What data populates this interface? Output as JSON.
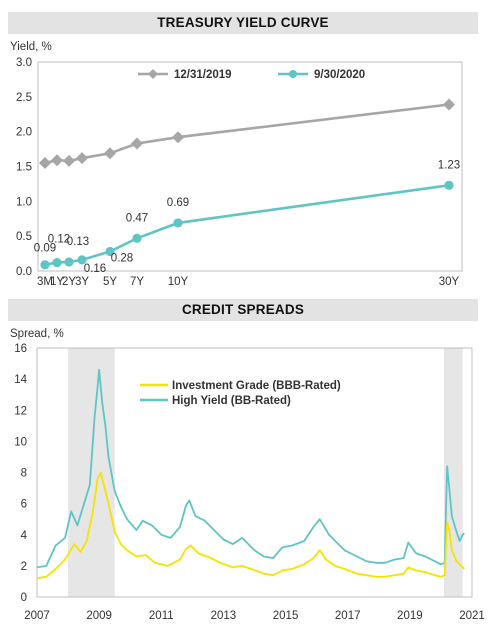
{
  "panels": {
    "yield_title": "TREASURY YIELD CURVE",
    "spread_title": "CREDIT SPREADS"
  },
  "colors": {
    "gray_series": "#a6a6a6",
    "teal_series": "#5fc4c4",
    "yellow_series": "#f5e300",
    "recession_shade": "#e6e6e6",
    "title_bar": "#e3e3e3"
  },
  "chart_data": [
    {
      "type": "line",
      "title": "TREASURY YIELD CURVE",
      "ylabel": "Yield, %",
      "ylim": [
        0,
        3.0
      ],
      "yticks": [
        "0.0",
        "0.5",
        "1.0",
        "1.5",
        "2.0",
        "2.5",
        "3.0"
      ],
      "grid": false,
      "legend": "top",
      "x_tick_labels": [
        "3M",
        "1Y",
        "2Y",
        "3Y",
        "5Y",
        "7Y",
        "10Y",
        "30Y"
      ],
      "x_years": [
        0.25,
        1,
        2,
        3,
        5,
        7,
        10,
        30
      ],
      "series": [
        {
          "name": "12/31/2019",
          "marker": "diamond",
          "values": [
            1.55,
            1.59,
            1.58,
            1.62,
            1.69,
            1.83,
            1.92,
            2.39
          ]
        },
        {
          "name": "9/30/2020",
          "marker": "circle",
          "values": [
            0.09,
            0.12,
            0.13,
            0.16,
            0.28,
            0.47,
            0.69,
            1.23
          ],
          "data_labels": [
            "0.09",
            "0.12",
            "0.13",
            "0.16",
            "0.28",
            "0.47",
            "0.69",
            "1.23"
          ]
        }
      ]
    },
    {
      "type": "line",
      "title": "CREDIT SPREADS",
      "ylabel": "Spread, %",
      "ylim": [
        0,
        16
      ],
      "yticks": [
        "0",
        "2",
        "4",
        "6",
        "8",
        "10",
        "12",
        "14",
        "16"
      ],
      "xlim": [
        2007,
        2021
      ],
      "xticks": [
        "2007",
        "2009",
        "2011",
        "2013",
        "2015",
        "2017",
        "2019",
        "2021"
      ],
      "grid": false,
      "legend": "top-center",
      "shaded_periods": [
        [
          2008.0,
          2009.5
        ],
        [
          2020.1,
          2020.7
        ]
      ],
      "series": [
        {
          "name": "Investment Grade (BBB-Rated)",
          "points": [
            [
              2007.0,
              1.2
            ],
            [
              2007.3,
              1.3
            ],
            [
              2007.6,
              1.8
            ],
            [
              2007.9,
              2.4
            ],
            [
              2008.2,
              3.4
            ],
            [
              2008.4,
              2.9
            ],
            [
              2008.6,
              3.6
            ],
            [
              2008.8,
              5.5
            ],
            [
              2008.95,
              7.6
            ],
            [
              2009.05,
              8.0
            ],
            [
              2009.15,
              7.2
            ],
            [
              2009.3,
              6.0
            ],
            [
              2009.5,
              4.2
            ],
            [
              2009.7,
              3.4
            ],
            [
              2009.9,
              3.0
            ],
            [
              2010.2,
              2.6
            ],
            [
              2010.5,
              2.7
            ],
            [
              2010.8,
              2.2
            ],
            [
              2011.2,
              2.0
            ],
            [
              2011.6,
              2.4
            ],
            [
              2011.8,
              3.1
            ],
            [
              2011.95,
              3.3
            ],
            [
              2012.2,
              2.8
            ],
            [
              2012.6,
              2.5
            ],
            [
              2012.9,
              2.2
            ],
            [
              2013.3,
              1.9
            ],
            [
              2013.6,
              2.0
            ],
            [
              2013.9,
              1.8
            ],
            [
              2014.3,
              1.5
            ],
            [
              2014.6,
              1.4
            ],
            [
              2014.9,
              1.7
            ],
            [
              2015.2,
              1.8
            ],
            [
              2015.6,
              2.1
            ],
            [
              2015.9,
              2.5
            ],
            [
              2016.1,
              3.0
            ],
            [
              2016.3,
              2.4
            ],
            [
              2016.6,
              2.0
            ],
            [
              2016.9,
              1.8
            ],
            [
              2017.3,
              1.5
            ],
            [
              2017.6,
              1.4
            ],
            [
              2017.9,
              1.3
            ],
            [
              2018.2,
              1.3
            ],
            [
              2018.5,
              1.4
            ],
            [
              2018.8,
              1.5
            ],
            [
              2018.95,
              1.9
            ],
            [
              2019.2,
              1.7
            ],
            [
              2019.5,
              1.6
            ],
            [
              2019.8,
              1.4
            ],
            [
              2020.0,
              1.3
            ],
            [
              2020.12,
              1.4
            ],
            [
              2020.2,
              4.8
            ],
            [
              2020.27,
              4.3
            ],
            [
              2020.35,
              3.0
            ],
            [
              2020.5,
              2.3
            ],
            [
              2020.7,
              1.9
            ],
            [
              2020.75,
              1.8
            ]
          ]
        },
        {
          "name": "High Yield (BB-Rated)",
          "points": [
            [
              2007.0,
              1.9
            ],
            [
              2007.3,
              2.0
            ],
            [
              2007.6,
              3.3
            ],
            [
              2007.9,
              3.8
            ],
            [
              2008.1,
              5.5
            ],
            [
              2008.3,
              4.6
            ],
            [
              2008.5,
              5.9
            ],
            [
              2008.7,
              7.2
            ],
            [
              2008.85,
              11.5
            ],
            [
              2008.95,
              13.5
            ],
            [
              2009.0,
              14.6
            ],
            [
              2009.1,
              12.5
            ],
            [
              2009.2,
              11.0
            ],
            [
              2009.3,
              9.0
            ],
            [
              2009.5,
              6.8
            ],
            [
              2009.7,
              5.8
            ],
            [
              2009.9,
              5.0
            ],
            [
              2010.2,
              4.3
            ],
            [
              2010.4,
              4.9
            ],
            [
              2010.7,
              4.6
            ],
            [
              2011.0,
              4.0
            ],
            [
              2011.3,
              3.8
            ],
            [
              2011.6,
              4.5
            ],
            [
              2011.8,
              5.9
            ],
            [
              2011.9,
              6.2
            ],
            [
              2012.1,
              5.2
            ],
            [
              2012.4,
              4.9
            ],
            [
              2012.7,
              4.3
            ],
            [
              2013.0,
              3.7
            ],
            [
              2013.3,
              3.4
            ],
            [
              2013.6,
              3.8
            ],
            [
              2014.0,
              3.0
            ],
            [
              2014.3,
              2.6
            ],
            [
              2014.6,
              2.5
            ],
            [
              2014.9,
              3.2
            ],
            [
              2015.2,
              3.3
            ],
            [
              2015.6,
              3.6
            ],
            [
              2015.9,
              4.5
            ],
            [
              2016.1,
              5.0
            ],
            [
              2016.4,
              4.0
            ],
            [
              2016.7,
              3.4
            ],
            [
              2016.9,
              3.0
            ],
            [
              2017.3,
              2.6
            ],
            [
              2017.6,
              2.3
            ],
            [
              2017.9,
              2.2
            ],
            [
              2018.2,
              2.2
            ],
            [
              2018.5,
              2.4
            ],
            [
              2018.8,
              2.5
            ],
            [
              2018.95,
              3.5
            ],
            [
              2019.2,
              2.8
            ],
            [
              2019.5,
              2.6
            ],
            [
              2019.8,
              2.3
            ],
            [
              2020.0,
              2.1
            ],
            [
              2020.12,
              2.2
            ],
            [
              2020.2,
              8.4
            ],
            [
              2020.27,
              7.0
            ],
            [
              2020.35,
              5.2
            ],
            [
              2020.5,
              4.2
            ],
            [
              2020.6,
              3.6
            ],
            [
              2020.7,
              4.0
            ],
            [
              2020.75,
              4.1
            ]
          ]
        }
      ]
    }
  ]
}
